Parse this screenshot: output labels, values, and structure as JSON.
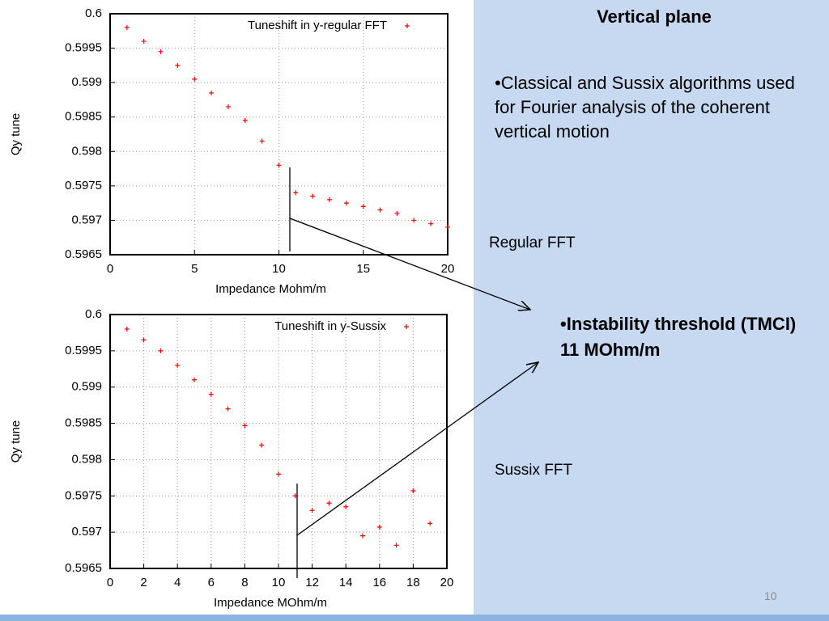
{
  "chart_data": [
    {
      "type": "scatter",
      "x_label": "Impedance Mohm/m",
      "y_label": "Qy tune",
      "x": [
        1,
        2,
        3,
        4,
        5,
        6,
        7,
        8,
        9,
        10,
        11,
        12,
        13,
        14,
        15,
        16,
        17,
        18,
        19,
        20
      ],
      "series": [
        {
          "name": "Tuneshift in y-regular FFT",
          "color": "#ff0000",
          "values": [
            0.5998,
            0.5996,
            0.59945,
            0.59925,
            0.59905,
            0.59885,
            0.59865,
            0.59845,
            0.59815,
            0.5978,
            0.5974,
            0.59735,
            0.5973,
            0.59725,
            0.5972,
            0.59715,
            0.5971,
            0.597,
            0.59695,
            0.5969
          ]
        }
      ],
      "xlim": [
        0,
        20
      ],
      "xticks": [
        0,
        5,
        10,
        15,
        20
      ],
      "ylim": [
        0.5965,
        0.6
      ],
      "yticks": [
        0.5965,
        0.597,
        0.5975,
        0.598,
        0.5985,
        0.599,
        0.5995,
        0.6
      ],
      "grid": true,
      "legend": "top-right"
    },
    {
      "type": "scatter",
      "x_label": "Impedance MOhm/m",
      "y_label": "Qy tune",
      "x": [
        1,
        2,
        3,
        4,
        5,
        6,
        7,
        8,
        9,
        10,
        11,
        12,
        13,
        14,
        15,
        16,
        17,
        18,
        19
      ],
      "series": [
        {
          "name": "Tuneshift in y-Sussix",
          "color": "#ff0000",
          "values": [
            0.5998,
            0.59965,
            0.5995,
            0.5993,
            0.5991,
            0.5989,
            0.5987,
            0.59847,
            0.5982,
            0.5978,
            0.5975,
            0.5973,
            0.5974,
            0.59735,
            0.59695,
            0.59707,
            0.59682,
            0.59757,
            0.59712
          ]
        }
      ],
      "xlim": [
        0,
        20
      ],
      "xticks": [
        0,
        2,
        4,
        6,
        8,
        10,
        12,
        14,
        16,
        18,
        20
      ],
      "ylim": [
        0.5965,
        0.6
      ],
      "yticks": [
        0.5965,
        0.597,
        0.5975,
        0.598,
        0.5985,
        0.599,
        0.5995,
        0.6
      ],
      "grid": true,
      "legend": "top-right"
    }
  ],
  "slide": {
    "title": "Vertical plane",
    "bullet": "•Classical and Sussix algorithms used for Fourier analysis of the coherent vertical motion",
    "label_regular": "Regular FFT",
    "label_sussix": "Sussix FFT",
    "threshold_line1": "•Instability threshold (TMCI)",
    "threshold_line2": "11 MOhm/m",
    "page_number": "10"
  }
}
